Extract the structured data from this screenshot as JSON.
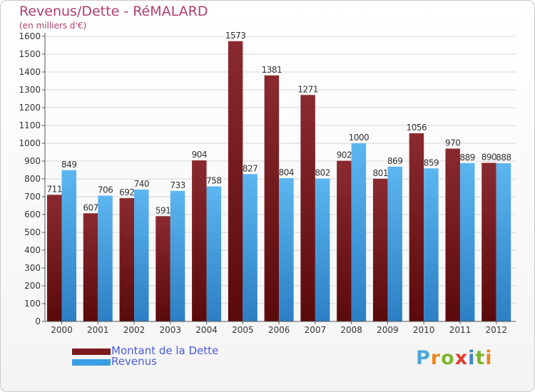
{
  "header": {
    "title": "Revenus/Dette - RéMALARD",
    "subtitle": "(en milliers d'€)"
  },
  "legend": {
    "items": [
      {
        "label": "Montant de la Dette",
        "color": "#7a1a1e"
      },
      {
        "label": "Revenus",
        "color": "#3b9fe3"
      }
    ]
  },
  "logo": {
    "text": "Proxiti",
    "letter_colors": [
      "#4fa7d8",
      "#e8891c",
      "#7cb82f",
      "#e03a2f",
      "#3d86c6",
      "#7cb82f",
      "#e8891c"
    ]
  },
  "colors": {
    "debt": "#7a1a1e",
    "revenue": "#3b9fe3",
    "title": "#b0406a"
  },
  "chart_data": {
    "type": "bar",
    "categories": [
      "2000",
      "2001",
      "2002",
      "2003",
      "2004",
      "2005",
      "2006",
      "2007",
      "2008",
      "2009",
      "2010",
      "2011",
      "2012"
    ],
    "series": [
      {
        "name": "Montant de la Dette",
        "values": [
          711,
          607,
          692,
          591,
          904,
          1573,
          1381,
          1271,
          902,
          801,
          1056,
          970,
          890
        ]
      },
      {
        "name": "Revenus",
        "values": [
          849,
          706,
          740,
          733,
          758,
          827,
          804,
          802,
          1000,
          869,
          859,
          889,
          888
        ]
      }
    ],
    "title": "Revenus/Dette - RéMALARD",
    "ylabel": "(en milliers d'€)",
    "ylim": [
      0,
      1600
    ],
    "yticks": [
      0,
      100,
      200,
      300,
      400,
      500,
      600,
      700,
      800,
      900,
      1000,
      1100,
      1200,
      1300,
      1400,
      1500,
      1600
    ],
    "grid": true,
    "legend_position": "bottom-left"
  }
}
